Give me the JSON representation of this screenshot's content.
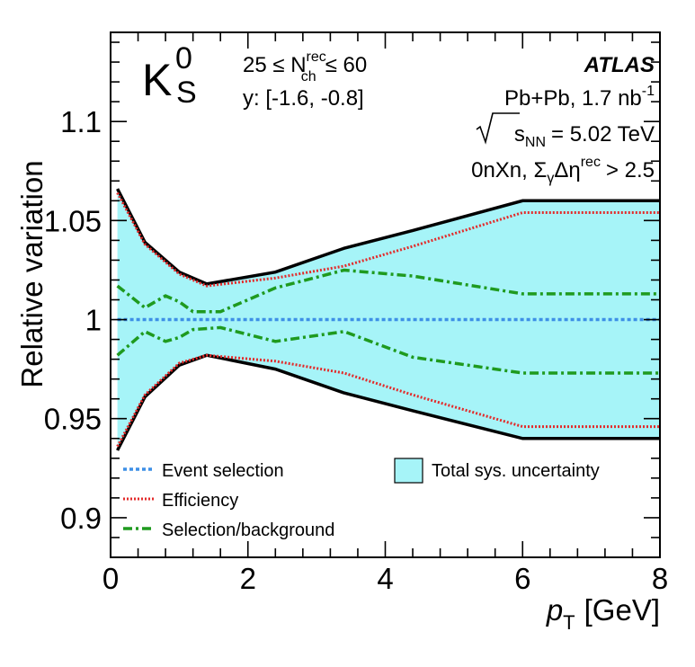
{
  "chart_data": {
    "type": "line",
    "title": "",
    "xlabel_italic": "p",
    "xlabel_sub": "T",
    "xlabel_unit": "[GeV]",
    "ylabel": "Relative variation",
    "xlim": [
      0,
      8
    ],
    "ylim": [
      0.88,
      1.145
    ],
    "x_major_ticks": [
      0,
      2,
      4,
      6,
      8
    ],
    "y_major_ticks": [
      0.9,
      0.95,
      1,
      1.05,
      1.1
    ],
    "x_tick_labels": [
      "0",
      "2",
      "4",
      "6",
      "8"
    ],
    "y_tick_labels": [
      "0.9",
      "0.95",
      "1",
      "1.05",
      "1.1"
    ],
    "grid": false,
    "particle_main": "K",
    "particle_sup": "0",
    "particle_sub": "S",
    "selection_lhs": "25 ≤ N",
    "selection_sup": "rec",
    "selection_sub": "ch",
    "selection_rhs": "≤ 60",
    "rapidity": "y: [-1.6, -0.8]",
    "experiment": "ATLAS",
    "system": "Pb+Pb, 1.7 nb",
    "system_sup": "-1",
    "energy_sqrt": "s",
    "energy_sub": "NN",
    "energy_value": "= 5.02 TeV",
    "topology": "0nXn, Σ",
    "topology_sub": "γ",
    "topology_mid": "Δη",
    "topology_sup": "rec",
    "topology_rhs": "> 2.5",
    "legend_position": "bottom",
    "series": [
      {
        "name": "Total sys. uncertainty",
        "kind": "band",
        "color": "#a6f4f8",
        "x": [
          0.1,
          0.5,
          1.0,
          1.4,
          2.4,
          3.4,
          4.4,
          6.0,
          8.0
        ],
        "upper": [
          1.066,
          1.039,
          1.024,
          1.018,
          1.024,
          1.036,
          1.045,
          1.06,
          1.06
        ],
        "lower": [
          0.934,
          0.961,
          0.977,
          0.982,
          0.975,
          0.963,
          0.954,
          0.94,
          0.94
        ]
      },
      {
        "name": "Event selection",
        "kind": "line",
        "color": "#3d8fe6",
        "dash": "dotted",
        "x": [
          0.1,
          8.0
        ],
        "values": [
          1.0,
          1.0
        ]
      },
      {
        "name": "Efficiency",
        "kind": "pair",
        "color": "#e32b2b",
        "dash": "fine-dotted",
        "x": [
          0.1,
          0.5,
          1.0,
          1.4,
          2.4,
          3.4,
          4.4,
          6.0,
          8.0
        ],
        "upper": [
          1.064,
          1.038,
          1.023,
          1.017,
          1.021,
          1.027,
          1.037,
          1.054,
          1.054
        ],
        "lower": [
          0.936,
          0.962,
          0.978,
          0.982,
          0.979,
          0.973,
          0.962,
          0.946,
          0.946
        ]
      },
      {
        "name": "Selection/background",
        "kind": "pair",
        "color": "#1f9a1f",
        "dash": "dash-dot",
        "x": [
          0.1,
          0.5,
          0.8,
          1.0,
          1.2,
          1.6,
          2.4,
          3.4,
          4.4,
          6.0,
          8.0
        ],
        "upper": [
          1.017,
          1.006,
          1.012,
          1.009,
          1.004,
          1.004,
          1.016,
          1.025,
          1.022,
          1.013,
          1.013
        ],
        "lower": [
          0.982,
          0.994,
          0.989,
          0.991,
          0.995,
          0.996,
          0.989,
          0.994,
          0.981,
          0.973,
          0.973
        ]
      }
    ]
  }
}
